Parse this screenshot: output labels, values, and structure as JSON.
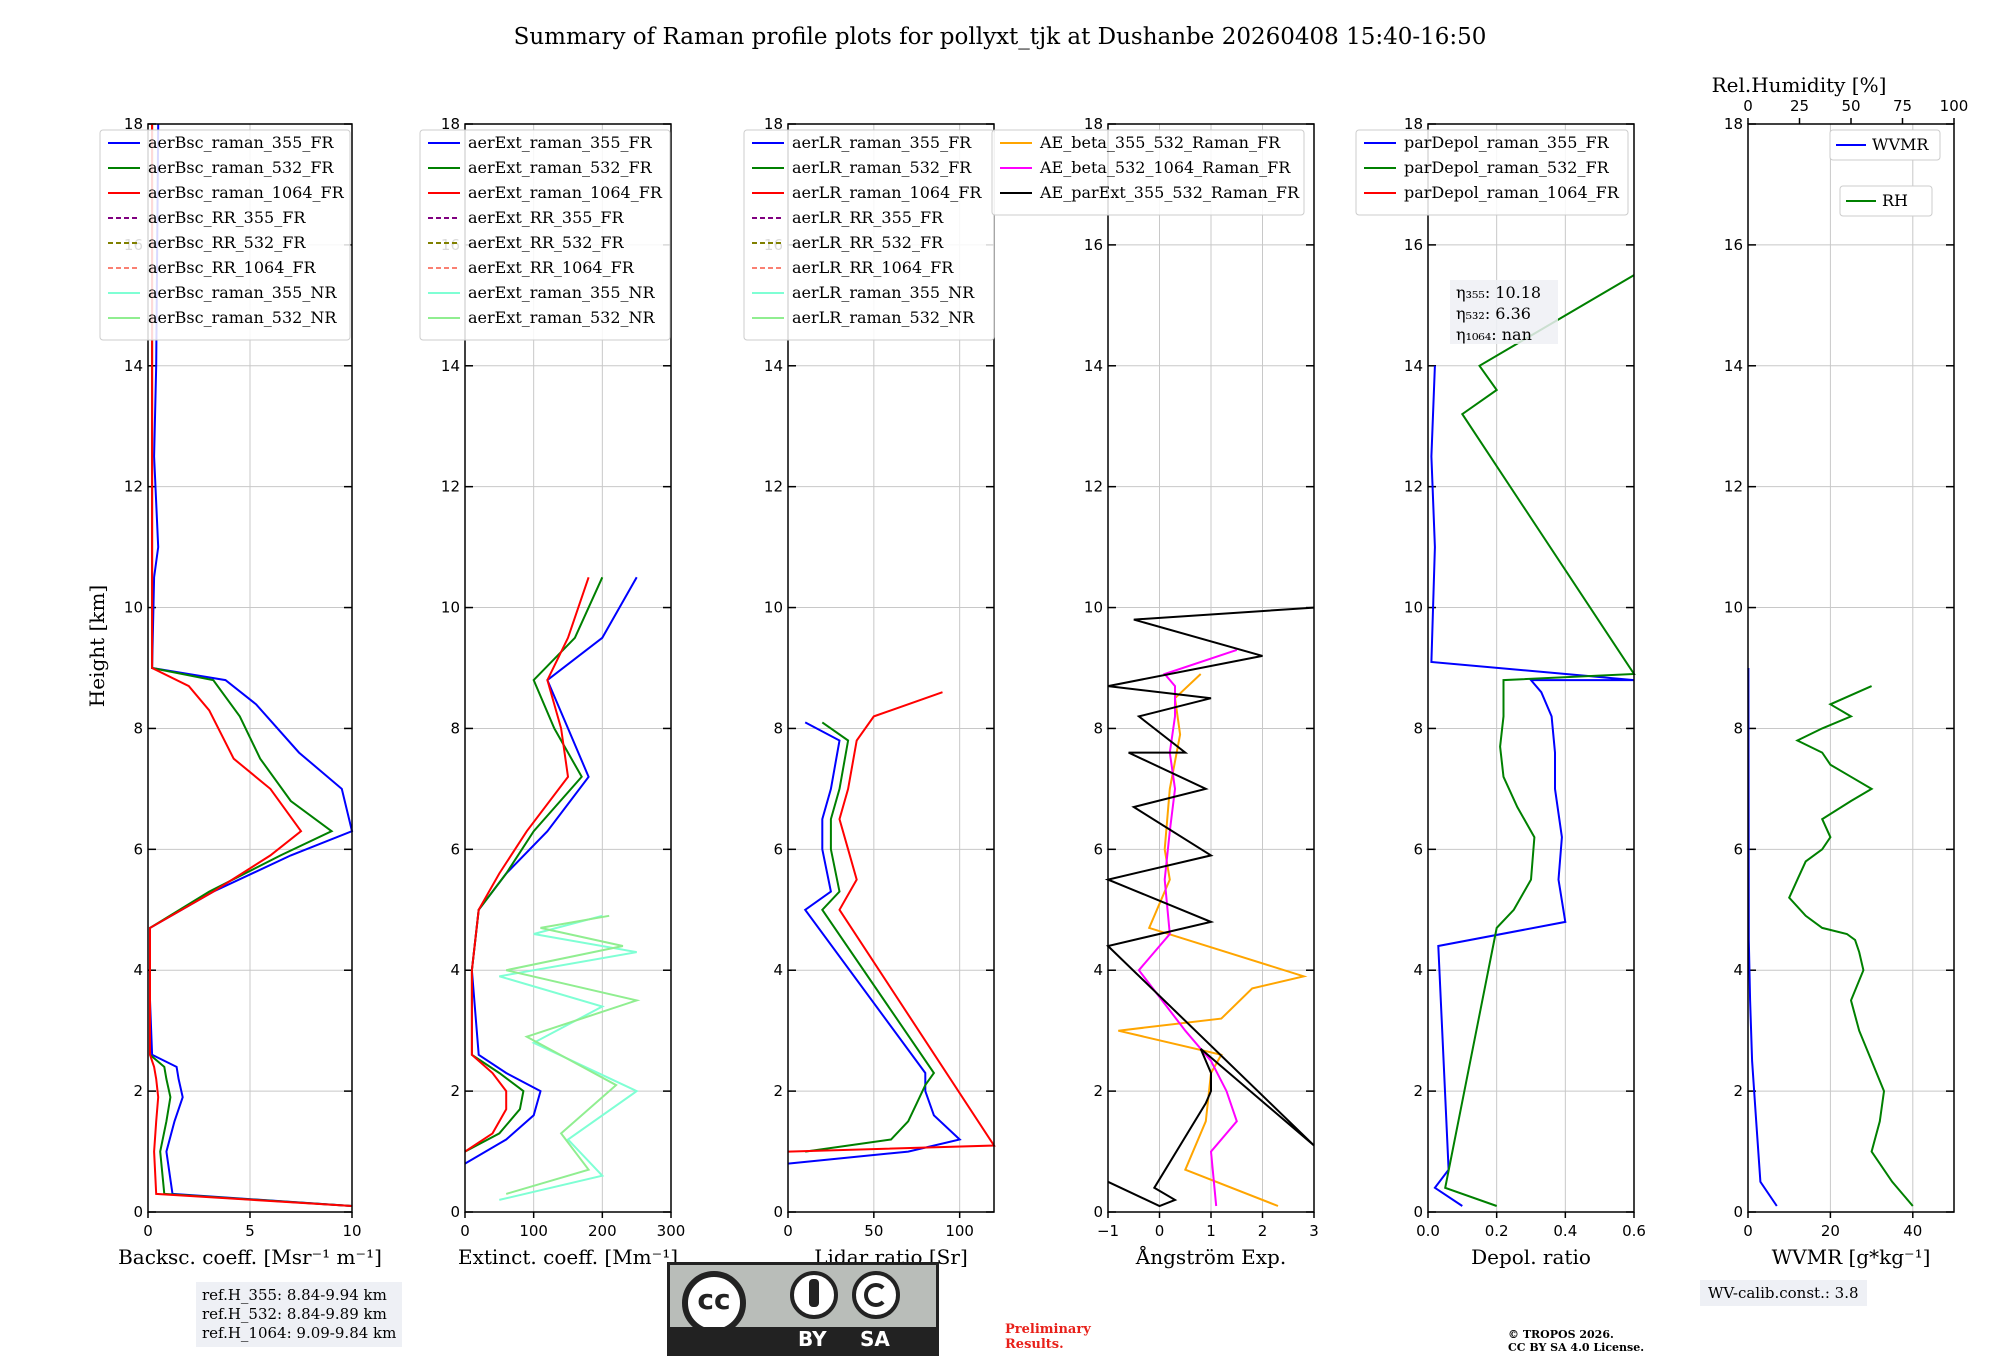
{
  "title": "Summary of Raman profile plots for pollyxt_tjk at Dushanbe 20260408 15:40-16:50",
  "colors": {
    "blue": "#0000ff",
    "green": "#008000",
    "red": "#ff0000",
    "purple": "#800080",
    "olive": "#808000",
    "salmon": "#fa8072",
    "cyan": "#7fffd4",
    "lightgreen": "#90ee90",
    "orange": "#ffa500",
    "magenta": "#ff00ff",
    "black": "#000000"
  },
  "ylabel": "Height [km]",
  "yticks": [
    "0",
    "2",
    "4",
    "6",
    "8",
    "10",
    "12",
    "14",
    "16",
    "18"
  ],
  "rh_axis": {
    "label": "Rel.Humidity [%]",
    "ticks": [
      "0",
      "25",
      "50",
      "75",
      "100"
    ]
  },
  "annotations": {
    "eta355": "η₃₅₅: 10.18",
    "eta532": "η₅₃₂: 6.36",
    "eta1064": "η₁₀₆₄: nan",
    "ref_h355": "ref.H_355: 8.84-9.94 km",
    "ref_h532": "ref.H_532: 8.84-9.89 km",
    "ref_h1064": "ref.H_1064: 9.09-9.84 km",
    "wv_calib": "WV-calib.const.: 3.8",
    "preliminary": "Preliminary\nResults.",
    "copyright_line1": "© TROPOS 2026.",
    "copyright_line2": "CC BY SA 4.0 License."
  },
  "license_badge": {
    "cc": "cc",
    "by": "BY",
    "sa": "SA"
  },
  "chart_data": [
    {
      "type": "line",
      "id": "bsc",
      "xlabel": "Backsc. coeff. [Msr⁻¹ m⁻¹]",
      "xlim": [
        0,
        10
      ],
      "ylim": [
        0,
        18
      ],
      "xticks": [
        "0",
        "5",
        "10"
      ],
      "legend": [
        {
          "name": "aerBsc_raman_355_FR",
          "color": "blue",
          "style": "solid"
        },
        {
          "name": "aerBsc_raman_532_FR",
          "color": "green",
          "style": "solid"
        },
        {
          "name": "aerBsc_raman_1064_FR",
          "color": "red",
          "style": "solid"
        },
        {
          "name": "aerBsc_RR_355_FR",
          "color": "purple",
          "style": "dashed"
        },
        {
          "name": "aerBsc_RR_532_FR",
          "color": "olive",
          "style": "dashed"
        },
        {
          "name": "aerBsc_RR_1064_FR",
          "color": "salmon",
          "style": "dashed"
        },
        {
          "name": "aerBsc_raman_355_NR",
          "color": "cyan",
          "style": "solid"
        },
        {
          "name": "aerBsc_raman_532_NR",
          "color": "lightgreen",
          "style": "solid"
        }
      ],
      "series": [
        {
          "name": "aerBsc_raman_355_FR",
          "color": "blue",
          "x": [
            10,
            1.2,
            0.9,
            1.3,
            1.7,
            1.5,
            1.4,
            0.2,
            0.1,
            0.1,
            3.2,
            7.0,
            10.0,
            9.5,
            7.4,
            5.3,
            3.8,
            0.2,
            0.3,
            0.5,
            0.3,
            0.4,
            0.5
          ],
          "y": [
            0.1,
            0.3,
            1.0,
            1.5,
            1.9,
            2.2,
            2.4,
            2.6,
            3.5,
            4.7,
            5.3,
            5.9,
            6.3,
            7.0,
            7.6,
            8.4,
            8.8,
            9.0,
            10.5,
            11.0,
            12.5,
            14.0,
            18.0
          ]
        },
        {
          "name": "aerBsc_raman_532_FR",
          "color": "green",
          "x": [
            10,
            0.8,
            0.6,
            0.9,
            1.1,
            0.9,
            0.8,
            0.1,
            0.1,
            0.1,
            3.0,
            6.5,
            9.0,
            7.0,
            5.5,
            4.5,
            3.2,
            0.2,
            0.2
          ],
          "y": [
            0.1,
            0.3,
            1.0,
            1.5,
            1.9,
            2.2,
            2.4,
            2.6,
            3.5,
            4.7,
            5.3,
            5.9,
            6.3,
            6.8,
            7.5,
            8.2,
            8.8,
            9.0,
            18.0
          ]
        },
        {
          "name": "aerBsc_raman_1064_FR",
          "color": "red",
          "x": [
            10,
            0.4,
            0.3,
            0.4,
            0.5,
            0.4,
            0.3,
            0.1,
            0.1,
            0.1,
            3.2,
            6.0,
            7.5,
            6.0,
            4.2,
            3.0,
            2.0,
            0.2,
            0.2
          ],
          "y": [
            0.1,
            0.3,
            1.0,
            1.5,
            1.9,
            2.2,
            2.4,
            2.6,
            3.5,
            4.7,
            5.3,
            5.9,
            6.3,
            7.0,
            7.5,
            8.3,
            8.7,
            9.0,
            18.0
          ]
        }
      ]
    },
    {
      "type": "line",
      "id": "ext",
      "xlabel": "Extinct. coeff. [Mm⁻¹]",
      "xlim": [
        0,
        300
      ],
      "ylim": [
        0,
        18
      ],
      "xticks": [
        "0",
        "100",
        "200",
        "300"
      ],
      "legend": [
        {
          "name": "aerExt_raman_355_FR",
          "color": "blue",
          "style": "solid"
        },
        {
          "name": "aerExt_raman_532_FR",
          "color": "green",
          "style": "solid"
        },
        {
          "name": "aerExt_raman_1064_FR",
          "color": "red",
          "style": "solid"
        },
        {
          "name": "aerExt_RR_355_FR",
          "color": "purple",
          "style": "dashed"
        },
        {
          "name": "aerExt_RR_532_FR",
          "color": "olive",
          "style": "dashed"
        },
        {
          "name": "aerExt_RR_1064_FR",
          "color": "salmon",
          "style": "dashed"
        },
        {
          "name": "aerExt_raman_355_NR",
          "color": "cyan",
          "style": "solid"
        },
        {
          "name": "aerExt_raman_532_NR",
          "color": "lightgreen",
          "style": "solid"
        }
      ],
      "series": [
        {
          "name": "aerExt_raman_355_FR",
          "color": "blue",
          "x": [
            0,
            60,
            100,
            110,
            60,
            20,
            10,
            20,
            60,
            120,
            180,
            150,
            120,
            200,
            250
          ],
          "y": [
            0.8,
            1.2,
            1.6,
            2.0,
            2.3,
            2.6,
            4.0,
            5.0,
            5.6,
            6.3,
            7.2,
            8.0,
            8.8,
            9.5,
            10.5
          ]
        },
        {
          "name": "aerExt_raman_532_FR",
          "color": "green",
          "x": [
            0,
            50,
            80,
            85,
            50,
            10,
            10,
            20,
            60,
            100,
            170,
            130,
            100,
            160,
            200
          ],
          "y": [
            1.0,
            1.3,
            1.7,
            2.0,
            2.3,
            2.6,
            4.0,
            5.0,
            5.6,
            6.3,
            7.2,
            8.0,
            8.8,
            9.5,
            10.5
          ]
        },
        {
          "name": "aerExt_raman_1064_FR",
          "color": "red",
          "x": [
            0,
            40,
            60,
            60,
            40,
            10,
            10,
            20,
            50,
            90,
            150,
            140,
            120,
            150,
            180
          ],
          "y": [
            1.0,
            1.3,
            1.7,
            2.0,
            2.3,
            2.6,
            4.0,
            5.0,
            5.6,
            6.3,
            7.2,
            8.0,
            8.8,
            9.5,
            10.5
          ]
        },
        {
          "name": "aerExt_raman_355_NR",
          "color": "cyan",
          "x": [
            50,
            200,
            150,
            250,
            100,
            200,
            50,
            250,
            100,
            200
          ],
          "y": [
            0.2,
            0.6,
            1.2,
            2.0,
            2.8,
            3.4,
            3.9,
            4.3,
            4.6,
            4.9
          ]
        },
        {
          "name": "aerExt_raman_532_NR",
          "color": "lightgreen",
          "x": [
            60,
            180,
            140,
            220,
            90,
            250,
            60,
            230,
            110,
            210
          ],
          "y": [
            0.3,
            0.7,
            1.3,
            2.1,
            2.9,
            3.5,
            4.0,
            4.4,
            4.7,
            4.9
          ]
        }
      ]
    },
    {
      "type": "line",
      "id": "lr",
      "xlabel": "Lidar ratio [Sr]",
      "xlim": [
        0,
        120
      ],
      "ylim": [
        0,
        18
      ],
      "xticks": [
        "0",
        "50",
        "100"
      ],
      "legend": [
        {
          "name": "aerLR_raman_355_FR",
          "color": "blue",
          "style": "solid"
        },
        {
          "name": "aerLR_raman_532_FR",
          "color": "green",
          "style": "solid"
        },
        {
          "name": "aerLR_raman_1064_FR",
          "color": "red",
          "style": "solid"
        },
        {
          "name": "aerLR_RR_355_FR",
          "color": "purple",
          "style": "dashed"
        },
        {
          "name": "aerLR_RR_532_FR",
          "color": "olive",
          "style": "dashed"
        },
        {
          "name": "aerLR_RR_1064_FR",
          "color": "salmon",
          "style": "dashed"
        },
        {
          "name": "aerLR_raman_355_NR",
          "color": "cyan",
          "style": "solid"
        },
        {
          "name": "aerLR_raman_532_NR",
          "color": "lightgreen",
          "style": "solid"
        }
      ],
      "series": [
        {
          "name": "aerLR_raman_355_FR",
          "color": "blue",
          "x": [
            0,
            70,
            100,
            85,
            80,
            80,
            10,
            25,
            20,
            20,
            25,
            30,
            10
          ],
          "y": [
            0.8,
            1.0,
            1.2,
            1.6,
            2.0,
            2.3,
            5.0,
            5.3,
            6.0,
            6.5,
            7.0,
            7.8,
            8.1
          ]
        },
        {
          "name": "aerLR_raman_532_FR",
          "color": "green",
          "x": [
            10,
            60,
            70,
            75,
            80,
            85,
            20,
            30,
            25,
            25,
            30,
            35,
            20
          ],
          "y": [
            1.0,
            1.2,
            1.5,
            1.8,
            2.1,
            2.3,
            5.0,
            5.3,
            6.0,
            6.5,
            7.0,
            7.8,
            8.1
          ]
        },
        {
          "name": "aerLR_raman_1064_FR",
          "color": "red",
          "x": [
            0,
            120,
            30,
            40,
            35,
            30,
            35,
            40,
            50,
            90
          ],
          "y": [
            1.0,
            1.1,
            5.0,
            5.5,
            6.0,
            6.5,
            7.0,
            7.8,
            8.2,
            8.6
          ]
        }
      ]
    },
    {
      "type": "line",
      "id": "ae",
      "xlabel": "Ångström Exp.",
      "xlim": [
        -1,
        3
      ],
      "ylim": [
        0,
        18
      ],
      "xticks": [
        "−1",
        "0",
        "1",
        "2",
        "3"
      ],
      "legend": [
        {
          "name": "AE_beta_355_532_Raman_FR",
          "color": "orange",
          "style": "solid"
        },
        {
          "name": "AE_beta_532_1064_Raman_FR",
          "color": "magenta",
          "style": "solid"
        },
        {
          "name": "AE_parExt_355_532_Raman_FR",
          "color": "black",
          "style": "solid"
        }
      ],
      "series": [
        {
          "name": "AE_beta_355_532_Raman_FR",
          "color": "orange",
          "x": [
            2.3,
            0.5,
            0.9,
            1.0,
            1.2,
            -0.8,
            1.2,
            1.8,
            2.8,
            -0.2,
            0.2,
            0.1,
            0.2,
            0.4,
            0.3,
            0.8
          ],
          "y": [
            0.1,
            0.7,
            1.5,
            2.3,
            2.6,
            3.0,
            3.2,
            3.7,
            3.9,
            4.7,
            5.5,
            6.0,
            7.0,
            7.9,
            8.5,
            8.9
          ]
        },
        {
          "name": "AE_beta_532_1064_Raman_FR",
          "color": "magenta",
          "x": [
            1.1,
            1.0,
            1.5,
            1.3,
            1.0,
            0.5,
            -0.4,
            0.2,
            0.1,
            0.2,
            0.3,
            0.2,
            0.3,
            0.3,
            0.1,
            1.5
          ],
          "y": [
            0.1,
            1.0,
            1.5,
            2.0,
            2.5,
            3.0,
            4.0,
            4.6,
            5.5,
            6.3,
            7.0,
            7.6,
            8.2,
            8.7,
            8.9,
            9.3
          ]
        },
        {
          "name": "AE_parExt_355_532_Raman_FR",
          "color": "black",
          "x": [
            -1,
            0,
            0.3,
            -0.1,
            0.9,
            1.0,
            1.0,
            0.8,
            3.0,
            -1,
            1.0,
            -1,
            1.0,
            -0.5,
            0.9,
            -0.6,
            0.5,
            -0.4,
            1.0,
            -1,
            2.0,
            -0.5,
            3.0
          ],
          "y": [
            0.5,
            0.1,
            0.2,
            0.4,
            1.8,
            2.0,
            2.3,
            2.7,
            1.1,
            4.4,
            4.8,
            5.5,
            5.9,
            6.7,
            7.0,
            7.6,
            7.6,
            8.2,
            8.5,
            8.7,
            9.2,
            9.8,
            10.0
          ]
        }
      ]
    },
    {
      "type": "line",
      "id": "depol",
      "xlabel": "Depol. ratio",
      "xlim": [
        0,
        0.6
      ],
      "ylim": [
        0,
        18
      ],
      "xticks": [
        "0.0",
        "0.2",
        "0.4",
        "0.6"
      ],
      "legend": [
        {
          "name": "parDepol_raman_355_FR",
          "color": "blue",
          "style": "solid"
        },
        {
          "name": "parDepol_raman_532_FR",
          "color": "green",
          "style": "solid"
        },
        {
          "name": "parDepol_raman_1064_FR",
          "color": "red",
          "style": "solid"
        }
      ],
      "series": [
        {
          "name": "parDepol_raman_355_FR",
          "color": "blue",
          "x": [
            0.1,
            0.02,
            0.06,
            0.03,
            0.4,
            0.38,
            0.39,
            0.37,
            0.37,
            0.36,
            0.33,
            0.3,
            0.6,
            0.01,
            0.02,
            0.01,
            0.02
          ],
          "y": [
            0.1,
            0.4,
            0.7,
            4.4,
            4.8,
            5.5,
            6.2,
            7.0,
            7.6,
            8.2,
            8.6,
            8.8,
            8.8,
            9.1,
            11.0,
            12.5,
            14.0
          ]
        },
        {
          "name": "parDepol_raman_532_FR",
          "color": "green",
          "x": [
            0.2,
            0.05,
            0.2,
            0.25,
            0.3,
            0.31,
            0.26,
            0.22,
            0.21,
            0.22,
            0.22,
            0.6,
            0.1,
            0.2,
            0.15,
            0.6
          ],
          "y": [
            0.1,
            0.4,
            4.7,
            5.0,
            5.5,
            6.2,
            6.7,
            7.2,
            7.7,
            8.2,
            8.8,
            8.9,
            13.2,
            13.6,
            14.0,
            15.5
          ]
        }
      ]
    },
    {
      "type": "line",
      "id": "wv",
      "xlabel": "WVMR [g*kg⁻¹]",
      "xlim": [
        0,
        50
      ],
      "ylim": [
        0,
        18
      ],
      "xticks": [
        "0",
        "20",
        "40"
      ],
      "legend": [
        {
          "name": "WVMR",
          "color": "blue",
          "style": "solid"
        },
        {
          "name": "RH",
          "color": "green",
          "style": "solid"
        }
      ],
      "series": [
        {
          "name": "WVMR",
          "color": "blue",
          "x": [
            7,
            3,
            2,
            1,
            0.5,
            0.2,
            0.1
          ],
          "y": [
            0.1,
            0.5,
            1.5,
            2.5,
            3.5,
            4.5,
            9.0
          ]
        },
        {
          "name": "RH",
          "color": "green",
          "x": [
            40,
            35,
            30,
            32,
            33,
            30,
            27,
            25,
            28,
            27,
            26,
            24,
            18,
            14,
            10,
            12,
            14,
            18,
            20,
            18,
            25,
            30,
            25,
            20,
            18,
            12,
            18,
            25,
            20,
            30
          ],
          "y": [
            0.1,
            0.5,
            1.0,
            1.5,
            2.0,
            2.5,
            3.0,
            3.5,
            4.0,
            4.3,
            4.5,
            4.6,
            4.7,
            4.9,
            5.2,
            5.5,
            5.8,
            6.0,
            6.2,
            6.5,
            6.8,
            7.0,
            7.2,
            7.4,
            7.6,
            7.8,
            8.0,
            8.2,
            8.4,
            8.7
          ]
        }
      ]
    }
  ]
}
